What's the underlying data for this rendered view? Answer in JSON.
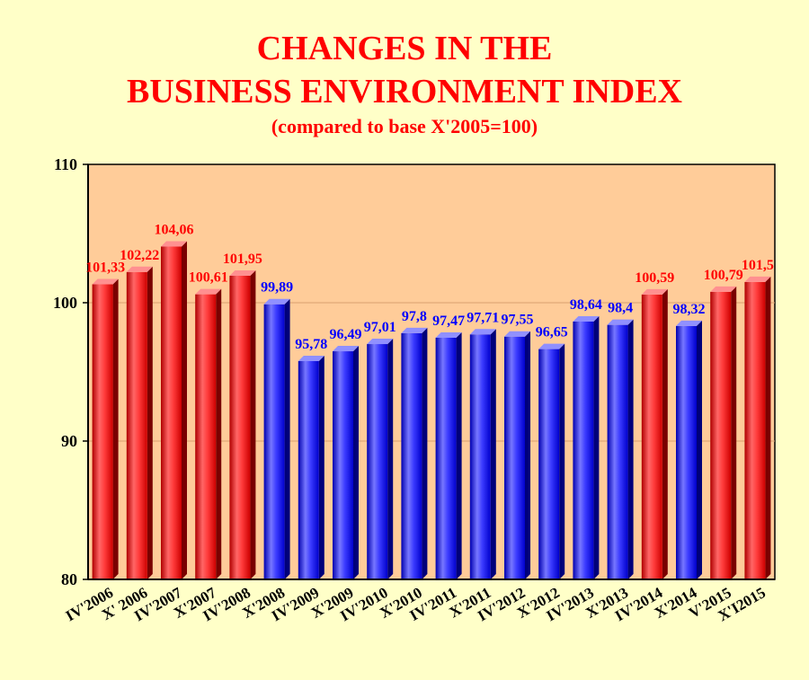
{
  "header": {
    "title_line1": "CHANGES IN THE",
    "title_line2": "BUSINESS ENVIRONMENT INDEX",
    "subtitle": "(compared to base X'2005=100)"
  },
  "chart_data": {
    "type": "bar",
    "title": "CHANGES IN THE BUSINESS ENVIRONMENT INDEX",
    "subtitle": "(compared to base X'2005=100)",
    "xlabel": "",
    "ylabel": "",
    "ylim": [
      80,
      110
    ],
    "yticks": [
      "80",
      "90",
      "100",
      "110"
    ],
    "grid": true,
    "legend": "none",
    "categories": [
      "IV'2006",
      "X' 2006",
      "IV'2007",
      "X'2007",
      "IV'2008",
      "X'2008",
      "IV'2009",
      "X'2009",
      "IV'2010",
      "X'2010",
      "IV'2011",
      "X'2011",
      "IV'2012",
      "X'2012",
      "IV'2013",
      "X'2013",
      "IV'2014",
      "X'2014",
      "V'2015",
      "X'I2015"
    ],
    "values": [
      101.33,
      102.22,
      104.06,
      100.61,
      101.95,
      99.89,
      95.78,
      96.49,
      97.01,
      97.8,
      97.47,
      97.71,
      97.55,
      96.65,
      98.64,
      98.4,
      100.59,
      98.32,
      100.79,
      101.5
    ],
    "value_labels": [
      "101,33",
      "102,22",
      "104,06",
      "100,61",
      "101,95",
      "99,89",
      "95,78",
      "96,49",
      "97,01",
      "97,8",
      "97,47",
      "97,71",
      "97,55",
      "96,65",
      "98,64",
      "98,4",
      "100,59",
      "98,32",
      "100,79",
      "101,5"
    ],
    "colors": {
      "above_base": "#ff3333",
      "below_base": "#3333ff",
      "above_label": "#ff0000",
      "below_label": "#0000ff",
      "plot_background": "#ffcc99",
      "page_background": "#ffffc8"
    }
  }
}
